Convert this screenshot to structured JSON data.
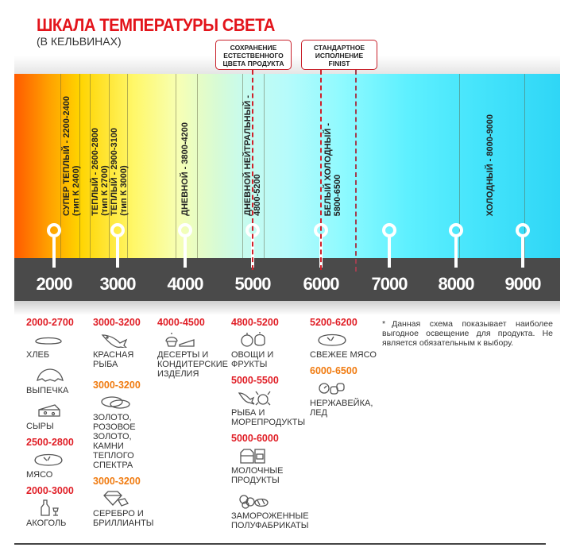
{
  "header": {
    "title": "ШКАЛА ТЕМПЕРАТУРЫ СВЕТА",
    "subtitle": "(В КЕЛЬВИНАХ)"
  },
  "callouts": [
    {
      "label": "СОХРАНЕНИЕ ЕСТЕСТВЕННОГО ЦВЕТА ПРОДУКТА",
      "color": "#d0202a"
    },
    {
      "label": "СТАНДАРТНОЕ ИСПОЛНЕНИЕ FINIST",
      "color": "#d0202a"
    }
  ],
  "zones": [
    {
      "line1": "СУПЕР ТЕПЛЫЙ - 2200-2400",
      "line2": "(тип К 2400)"
    },
    {
      "line1": "ТЕПЛЫЙ - 2600-2800",
      "line2": "(тип К 2700)"
    },
    {
      "line1": "ТЕПЛЫЙ - 2900-3100",
      "line2": "(тип К 3000)"
    },
    {
      "line1": "ДНЕВНОЙ - 3800-4200",
      "line2": ""
    },
    {
      "line1": "ДНЕВНОЙ НЕЙТРАЛЬНЫЙ -",
      "line2": "4800-5200"
    },
    {
      "line1": "БЕЛЫЙ ХОЛОДНЫЙ -",
      "line2": "5800-6500"
    },
    {
      "line1": "ХОЛОДНЫЙ - 8000-9000",
      "line2": ""
    }
  ],
  "scale": [
    "2000",
    "3000",
    "4000",
    "5000",
    "6000",
    "7000",
    "8000",
    "9000"
  ],
  "columns": [
    [
      {
        "range": "2000-2700",
        "icon": "bread-icon",
        "label": "ХЛЕБ"
      },
      {
        "icon": "croissant-icon",
        "label": "ВЫПЕЧКА"
      },
      {
        "icon": "cheese-icon",
        "label": "СЫРЫ"
      },
      {
        "range": "2500-2800",
        "icon": "steak-icon",
        "label": "МЯСО"
      },
      {
        "range": "2000-3000",
        "icon": "bottle-icon",
        "label": "АКОГОЛЬ"
      }
    ],
    [
      {
        "range": "3000-3200",
        "icon": "fish-icon",
        "label": "КРАСНАЯ РЫБА"
      },
      {
        "range": "3000-3200",
        "orange": true,
        "icon": "rings-icon",
        "label": "ЗОЛОТО, РОЗОВОЕ ЗОЛОТО, КАМНИ ТЕПЛОГО СПЕКТРА"
      },
      {
        "range": "3000-3200",
        "orange": true,
        "icon": "diamond-icon",
        "label": "СЕРЕБРО И БРИЛЛИАНТЫ"
      }
    ],
    [
      {
        "range": "4000-4500",
        "icon": "cake-icon",
        "label": "ДЕСЕРТЫ И КОНДИТЕРСКИЕ ИЗДЕЛИЯ"
      }
    ],
    [
      {
        "range": "4800-5200",
        "icon": "vegetables-icon",
        "label": "ОВОЩИ И ФРУКТЫ"
      },
      {
        "range": "5000-5500",
        "icon": "seafood-icon",
        "label": "РЫБА И МОРЕПРОДУКТЫ"
      },
      {
        "range": "5000-6000",
        "icon": "milk-icon",
        "label": "МОЛОЧНЫЕ ПРОДУКТЫ"
      },
      {
        "icon": "frozen-food-icon",
        "label": "ЗАМОРОЖЕННЫЕ ПОЛУФАБРИКАТЫ"
      }
    ],
    [
      {
        "range": "5200-6200",
        "icon": "steak-icon",
        "label": "СВЕЖЕЕ МЯСО"
      },
      {
        "range": "6000-6500",
        "orange": true,
        "icon": "ice-icon",
        "label": "НЕРЖАВЕЙКА, ЛЕД"
      }
    ]
  ],
  "note": {
    "mark": "*",
    "text": "Данная схема показывает наиболее выгодное освещение для продукта. Не является обязательным к выбору."
  },
  "colors": {
    "title": "#e3141b",
    "range": "#e01e26",
    "range_alt": "#f07b10",
    "scale_bar": "#4a4a4a"
  }
}
